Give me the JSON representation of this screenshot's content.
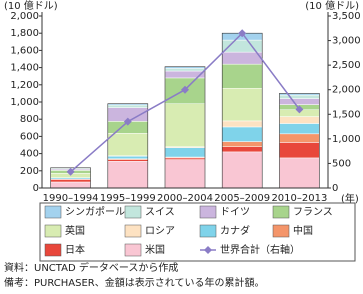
{
  "chart_data": {
    "type": "stacked-bar-line",
    "y_label": "(10 億ドル)",
    "y2_label": "(10 億ドル)",
    "x_label": "(年)",
    "categories": [
      "1990–1994",
      "1995–1999",
      "2000–2004",
      "2005–2009",
      "2010–2013"
    ],
    "series": [
      {
        "name": "米国",
        "color": "#f9c6d3",
        "values": [
          70,
          310,
          330,
          420,
          350
        ]
      },
      {
        "name": "日本",
        "color": "#e8473b",
        "values": [
          30,
          20,
          20,
          60,
          180
        ]
      },
      {
        "name": "中国",
        "color": "#f4956a",
        "values": [
          5,
          10,
          10,
          60,
          100
        ]
      },
      {
        "name": "カナダ",
        "color": "#7fd3ea",
        "values": [
          15,
          30,
          110,
          170,
          120
        ]
      },
      {
        "name": "ロシア",
        "color": "#fde2c2",
        "values": [
          0,
          5,
          10,
          70,
          80
        ]
      },
      {
        "name": "英国",
        "color": "#d8ecb2",
        "values": [
          50,
          260,
          500,
          380,
          80
        ]
      },
      {
        "name": "フランス",
        "color": "#a8d48c",
        "values": [
          35,
          140,
          300,
          280,
          60
        ]
      },
      {
        "name": "ドイツ",
        "color": "#cbb5de",
        "values": [
          15,
          160,
          80,
          140,
          70
        ]
      },
      {
        "name": "スイス",
        "color": "#c2e6dd",
        "values": [
          10,
          30,
          30,
          140,
          40
        ]
      },
      {
        "name": "シンガポール",
        "color": "#a3d2ee",
        "values": [
          5,
          15,
          20,
          80,
          20
        ]
      },
      {
        "name": "世界合計（右軸）",
        "color": "#8a7cc6",
        "axis": "y2",
        "values": [
          330,
          1350,
          2000,
          3150,
          1600
        ]
      }
    ],
    "ylim": [
      0,
      2000
    ],
    "yticks": [
      0,
      200,
      400,
      600,
      800,
      {
        "value": 1000,
        "label": "1,000"
      },
      {
        "value": 1200,
        "label": "1,200"
      },
      {
        "value": 1400,
        "label": "1,400"
      },
      {
        "value": 1600,
        "label": "1,600"
      },
      {
        "value": 1800,
        "label": "1,800"
      },
      {
        "value": 2000,
        "label": "2,000"
      }
    ],
    "y2lim": [
      0,
      3500
    ],
    "y2ticks": [
      0,
      500,
      {
        "value": 1000,
        "label": "1,000"
      },
      {
        "value": 1500,
        "label": "1,500"
      },
      {
        "value": 2000,
        "label": "2,000"
      },
      {
        "value": 2500,
        "label": "2,500"
      },
      {
        "value": 3000,
        "label": "3,000"
      },
      {
        "value": 3500,
        "label": "3,500"
      }
    ],
    "notes": [
      "資料：UNCTAD データベースから作成",
      "備考：PURCHASER、金額は表示されている年の累計額。"
    ]
  }
}
